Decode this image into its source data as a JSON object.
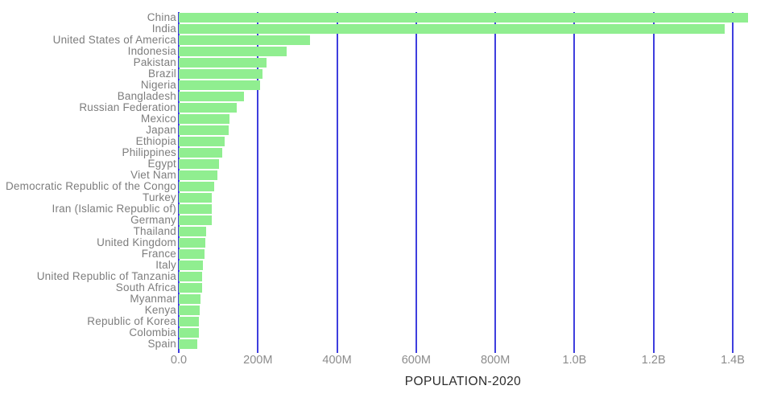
{
  "chart_data": {
    "type": "bar",
    "orientation": "horizontal",
    "title": "",
    "xlabel": "POPULATION-2020",
    "ylabel": "",
    "legend": false,
    "grid": true,
    "xlim_millions": [
      0,
      1502
    ],
    "categories": [
      "China",
      "India",
      "United States of America",
      "Indonesia",
      "Pakistan",
      "Brazil",
      "Nigeria",
      "Bangladesh",
      "Russian Federation",
      "Mexico",
      "Japan",
      "Ethiopia",
      "Philippines",
      "Egypt",
      "Viet Nam",
      "Democratic Republic of the Congo",
      "Turkey",
      "Iran (Islamic Republic of)",
      "Germany",
      "Thailand",
      "United Kingdom",
      "France",
      "Italy",
      "United Republic of Tanzania",
      "South Africa",
      "Myanmar",
      "Kenya",
      "Republic of Korea",
      "Colombia",
      "Spain"
    ],
    "values_millions": [
      1439.3,
      1380.0,
      331.0,
      273.5,
      220.9,
      212.6,
      206.1,
      164.7,
      145.9,
      128.9,
      126.5,
      115.0,
      109.6,
      102.3,
      97.3,
      89.6,
      84.3,
      84.0,
      83.8,
      69.8,
      67.9,
      65.3,
      60.5,
      59.7,
      59.3,
      54.4,
      53.8,
      51.3,
      50.9,
      46.8
    ],
    "xticks": [
      {
        "label": "0.0",
        "value_millions": 0
      },
      {
        "label": "200M",
        "value_millions": 200
      },
      {
        "label": "400M",
        "value_millions": 400
      },
      {
        "label": "600M",
        "value_millions": 600
      },
      {
        "label": "800M",
        "value_millions": 800
      },
      {
        "label": "1.0B",
        "value_millions": 1000
      },
      {
        "label": "1.2B",
        "value_millions": 1200
      },
      {
        "label": "1.4B",
        "value_millions": 1400
      }
    ],
    "colors": {
      "bar": "#90ee90",
      "gridline": "#3e3ede",
      "category_label": "#7d7d7d",
      "tick_label": "#8c8c8c",
      "axis_title": "#2c2c2c",
      "background": "#ffffff"
    }
  }
}
